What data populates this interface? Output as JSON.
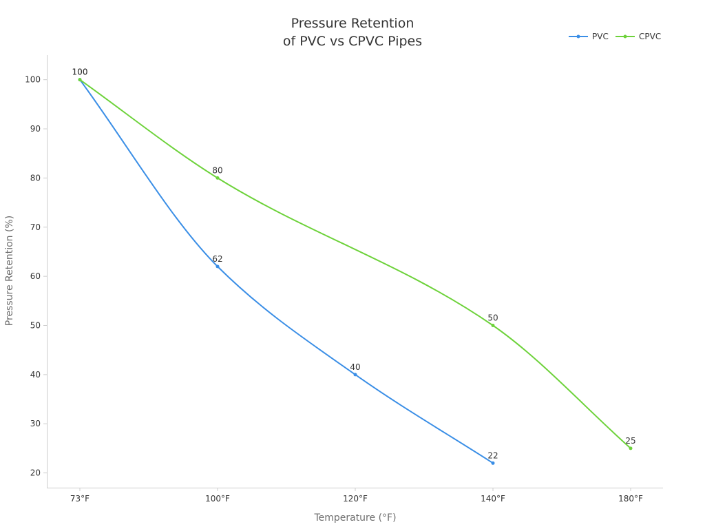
{
  "chart_data": {
    "type": "line",
    "title_lines": [
      "Pressure Retention",
      "of PVC vs CPVC Pipes"
    ],
    "xlabel": "Temperature (°F)",
    "ylabel": "Pressure Retention (%)",
    "categories": [
      "73°F",
      "100°F",
      "120°F",
      "140°F",
      "180°F"
    ],
    "ylim": [
      17,
      105
    ],
    "yticks": [
      20,
      30,
      40,
      50,
      60,
      70,
      80,
      90,
      100
    ],
    "grid": false,
    "legend_position": "top-right",
    "series": [
      {
        "name": "PVC",
        "color": "#3a8ee6",
        "values": [
          100,
          62,
          40,
          22,
          null
        ]
      },
      {
        "name": "CPVC",
        "color": "#6dd23a",
        "values": [
          100,
          80,
          null,
          50,
          25
        ]
      }
    ]
  }
}
